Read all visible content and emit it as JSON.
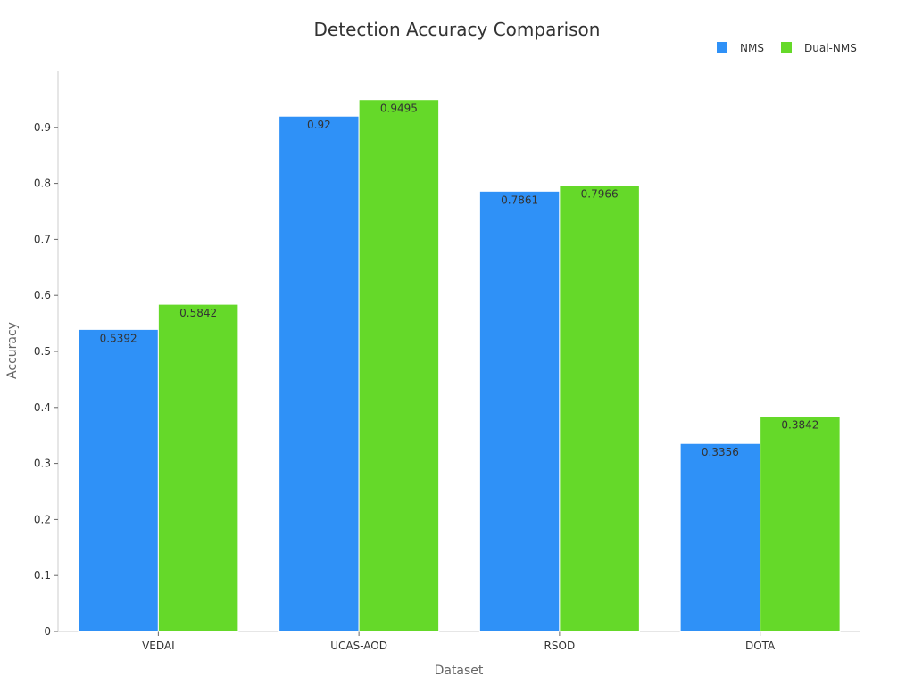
{
  "chart_data": {
    "type": "bar",
    "title": "Detection Accuracy Comparison",
    "xlabel": "Dataset",
    "ylabel": "Accuracy",
    "categories": [
      "VEDAI",
      "UCAS-AOD",
      "RSOD",
      "DOTA"
    ],
    "series": [
      {
        "name": "NMS",
        "color": "#2f91f7",
        "values": [
          0.5392,
          0.92,
          0.7861,
          0.3356
        ],
        "labels": [
          "0.5392",
          "0.92",
          "0.7861",
          "0.3356"
        ]
      },
      {
        "name": "Dual-NMS",
        "color": "#65d929",
        "values": [
          0.5842,
          0.9495,
          0.7966,
          0.3842
        ],
        "labels": [
          "0.5842",
          "0.9495",
          "0.7966",
          "0.3842"
        ]
      }
    ],
    "ylim": [
      0,
      1
    ],
    "yticks": [
      0,
      0.1,
      0.2,
      0.3,
      0.4,
      0.5,
      0.6,
      0.7,
      0.8,
      0.9
    ],
    "ytick_labels": [
      "0",
      "0.1",
      "0.2",
      "0.3",
      "0.4",
      "0.5",
      "0.6",
      "0.7",
      "0.8",
      "0.9"
    ],
    "legend_position": "top-right",
    "grid": false
  }
}
